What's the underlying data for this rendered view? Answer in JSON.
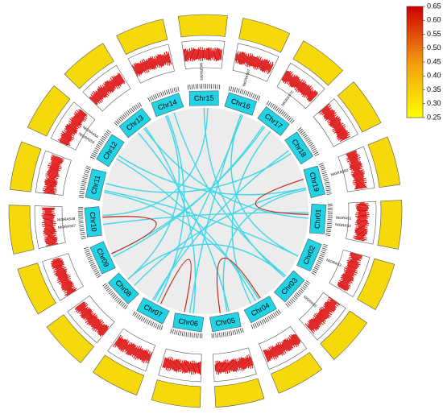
{
  "chart_data": {
    "type": "circos",
    "categories": [
      "Chr01",
      "Chr02",
      "Chr03",
      "Chr04",
      "Chr05",
      "Chr06",
      "Chr07",
      "Chr08",
      "Chr09",
      "Chr10",
      "Chr11",
      "Chr12",
      "Chr13",
      "Chr14",
      "Chr15",
      "Chr16",
      "Chr17",
      "Chr18",
      "Chr19"
    ],
    "genes": [
      {
        "chr": 0,
        "name": "NtGRAS1"
      },
      {
        "chr": 0,
        "name": "NtGRAS2"
      },
      {
        "chr": 1,
        "name": "NtGRAS3"
      },
      {
        "chr": 2,
        "name": "NtGRAS5"
      },
      {
        "chr": 9,
        "name": "NtGRAS47"
      },
      {
        "chr": 9,
        "name": "NtGRAS48"
      },
      {
        "chr": 11,
        "name": "NtGRAS53"
      },
      {
        "chr": 11,
        "name": "NtGRAS54"
      },
      {
        "chr": 14,
        "name": "NtGRAS61"
      },
      {
        "chr": 15,
        "name": "NtGRAS67"
      },
      {
        "chr": 16,
        "name": "NtGRAS72"
      },
      {
        "chr": 18,
        "name": "NtGRAS82"
      }
    ],
    "links": [
      [
        0,
        9
      ],
      [
        0,
        12
      ],
      [
        1,
        10
      ],
      [
        2,
        13
      ],
      [
        3,
        11
      ],
      [
        3,
        16
      ],
      [
        4,
        12
      ],
      [
        5,
        15
      ],
      [
        6,
        17
      ],
      [
        7,
        18
      ],
      [
        8,
        16
      ],
      [
        9,
        14
      ],
      [
        10,
        3
      ],
      [
        11,
        18
      ],
      [
        12,
        5
      ],
      [
        13,
        7
      ],
      [
        14,
        2
      ],
      [
        15,
        6
      ],
      [
        16,
        8
      ],
      [
        17,
        10
      ],
      [
        18,
        4
      ],
      [
        2,
        7
      ],
      [
        6,
        13
      ],
      [
        1,
        15
      ]
    ],
    "red_links": [
      [
        18,
        0
      ],
      [
        8,
        9
      ],
      [
        5,
        6
      ],
      [
        3,
        4
      ]
    ],
    "colorbar": {
      "ylim": [
        0.25,
        0.65
      ],
      "yticks": [
        0.25,
        {
          "value": 0.3,
          "label": "0.30"
        },
        0.35,
        {
          "value": 0.4,
          "label": "0.40"
        },
        0.45,
        {
          "value": 0.5,
          "label": "0.50"
        },
        0.55,
        {
          "value": 0.6,
          "label": "0.60"
        },
        0.65
      ]
    }
  }
}
